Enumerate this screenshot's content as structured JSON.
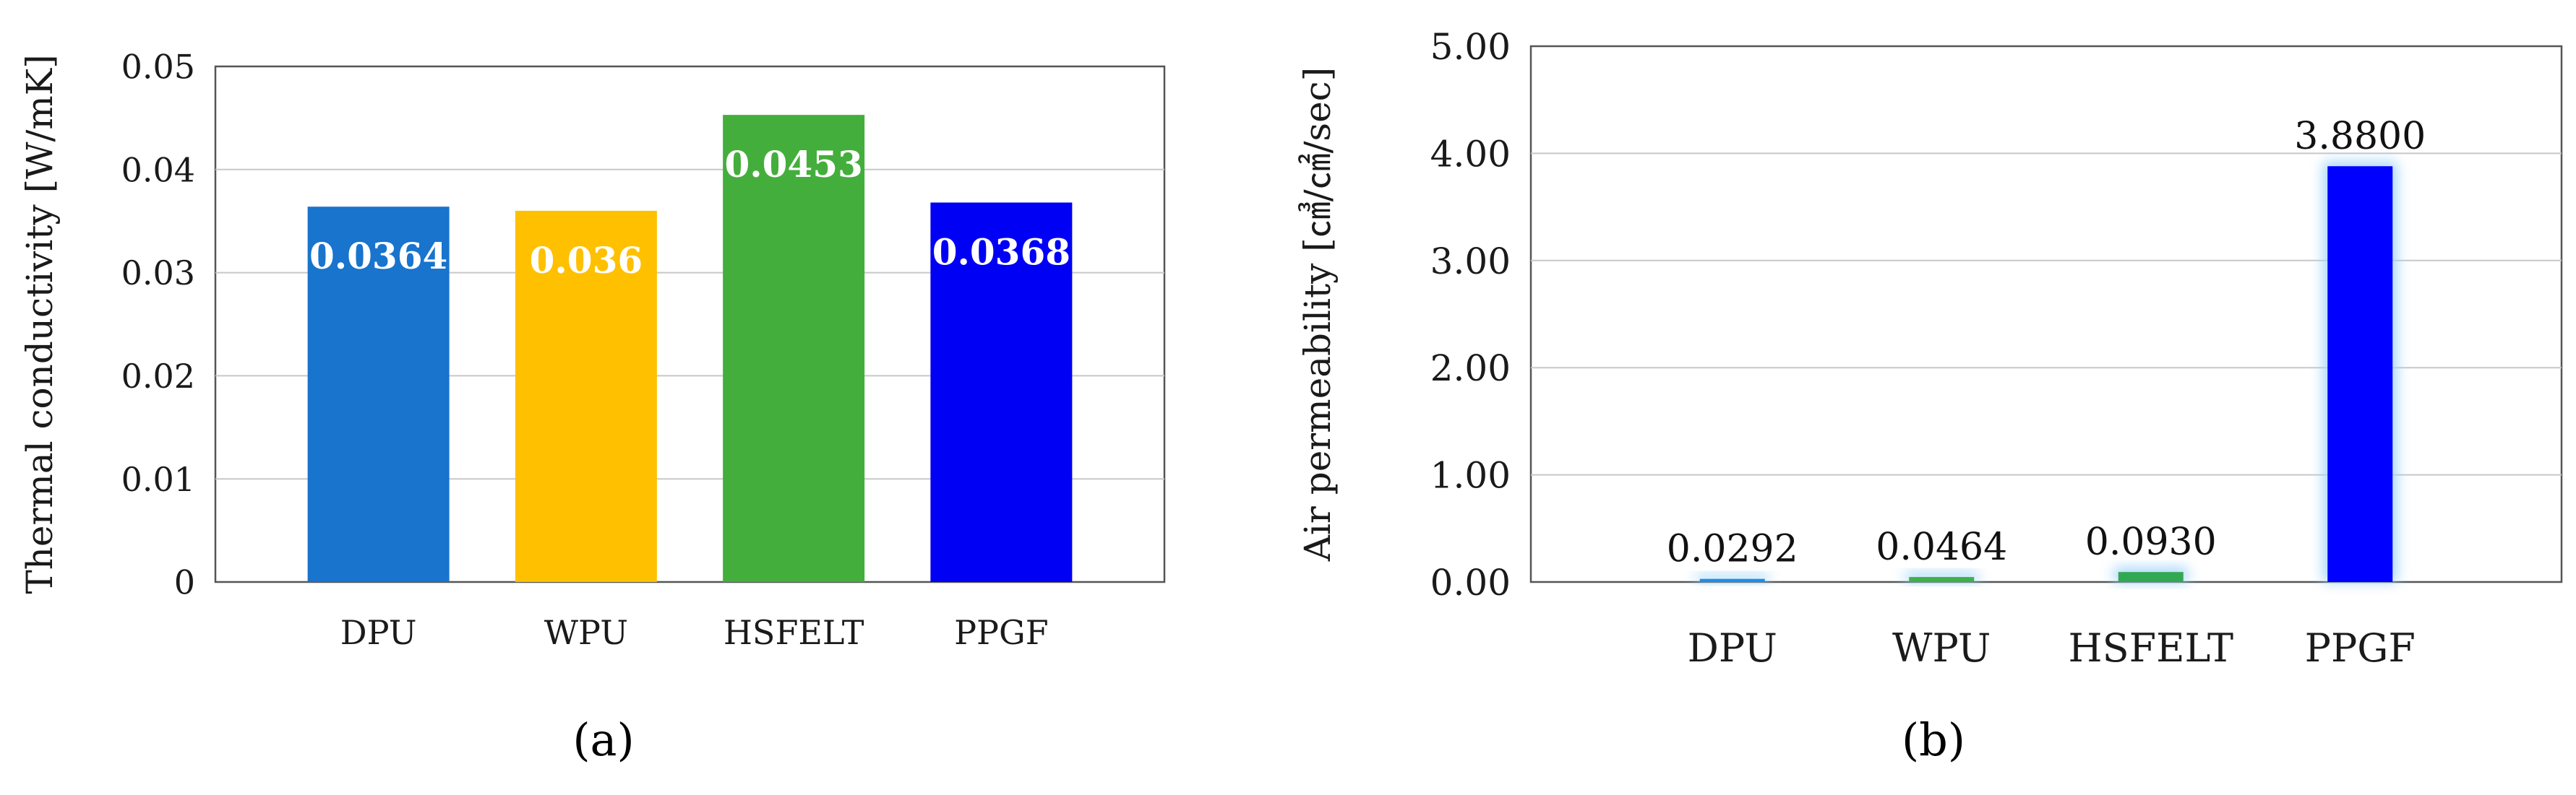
{
  "chart_data": [
    {
      "type": "bar",
      "panel_label": "(a)",
      "categories": [
        "DPU",
        "WPU",
        "HSFELT",
        "PPGF"
      ],
      "values": [
        0.0364,
        0.036,
        0.0453,
        0.0368
      ],
      "data_labels": [
        "0.0364",
        "0.036",
        "0.0453",
        "0.0368"
      ],
      "colors": [
        "#1874cd",
        "#ffc000",
        "#44ae3c",
        "#0000f5"
      ],
      "ylabel": "Thermal conductivity [W/mK]",
      "ylim": [
        0,
        0.05
      ],
      "yticks": [
        "0",
        "0.01",
        "0.02",
        "0.03",
        "0.04",
        "0.05"
      ],
      "grid": true,
      "data_label_style": "inside-white-bold"
    },
    {
      "type": "bar",
      "panel_label": "(b)",
      "categories": [
        "DPU",
        "WPU",
        "HSFELT",
        "PPGF"
      ],
      "values": [
        0.0292,
        0.0464,
        0.093,
        3.88
      ],
      "data_labels": [
        "0.0292",
        "0.0464",
        "0.0930",
        "3.8800"
      ],
      "colors": [
        "#1f8ee8",
        "#3fb04a",
        "#33a852",
        "#0000ff"
      ],
      "glow_color": "#9fd3f8",
      "ylabel": "Air permeability [㎤/㎠/sec]",
      "ylim": [
        0,
        5
      ],
      "yticks": [
        "0.00",
        "1.00",
        "2.00",
        "3.00",
        "4.00",
        "5.00"
      ],
      "grid": true,
      "data_label_style": "above-black"
    }
  ]
}
